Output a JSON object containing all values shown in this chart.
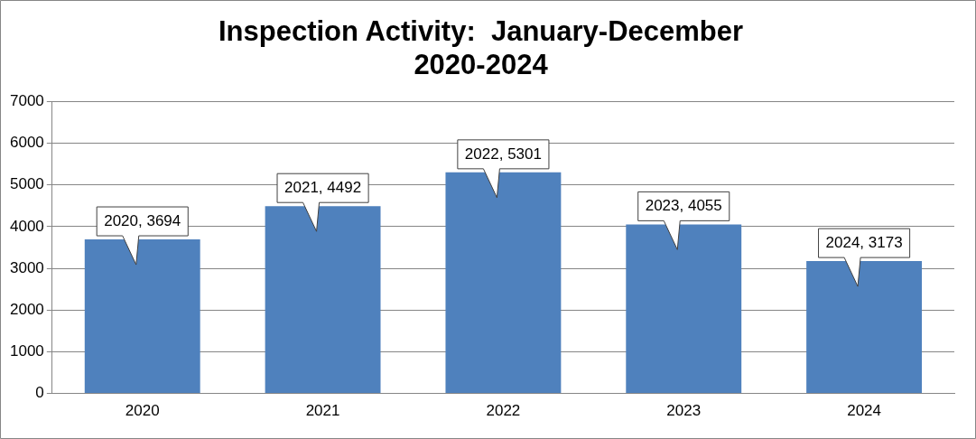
{
  "chart_data": {
    "type": "bar",
    "title": "Inspection Activity:  January-December\n2020-2024",
    "categories": [
      "2020",
      "2021",
      "2022",
      "2023",
      "2024"
    ],
    "values": [
      3694,
      4492,
      5301,
      4055,
      3173
    ],
    "value_labels": [
      "2020, 3694",
      "2021, 4492",
      "2022, 5301",
      "2023, 4055",
      "2024, 3173"
    ],
    "color": "#4f81bd",
    "ylim": [
      0,
      7000
    ],
    "yticks": [
      0,
      1000,
      2000,
      3000,
      4000,
      5000,
      6000,
      7000
    ],
    "grid": "y",
    "legend": false
  }
}
